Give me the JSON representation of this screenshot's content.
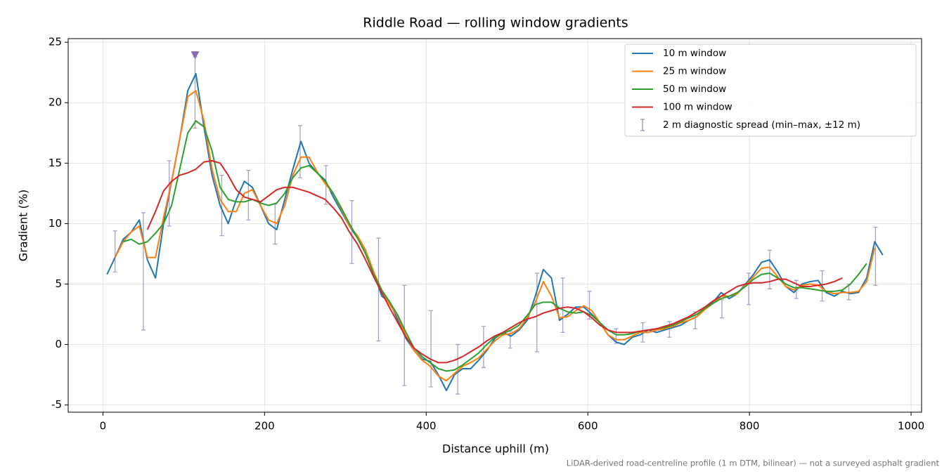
{
  "chart_data": {
    "type": "line",
    "title": "Riddle Road — rolling window gradients",
    "xlabel": "Distance uphill (m)",
    "ylabel": "Gradient (%)",
    "footnote": "LiDAR-derived road-centreline profile (1 m DTM, bilinear) — not a surveyed asphalt gradient",
    "xlim": [
      -43,
      1013
    ],
    "ylim": [
      -5.6,
      25.3
    ],
    "xticks": [
      0,
      200,
      400,
      600,
      800,
      1000
    ],
    "yticks": [
      -5,
      0,
      5,
      10,
      15,
      20,
      25
    ],
    "grid": true,
    "legend": "upper right",
    "x": [
      5,
      15,
      25,
      35,
      45,
      55,
      65,
      75,
      85,
      95,
      105,
      115,
      125,
      135,
      145,
      155,
      165,
      175,
      185,
      195,
      205,
      215,
      225,
      235,
      245,
      255,
      265,
      275,
      285,
      295,
      305,
      315,
      325,
      335,
      345,
      355,
      365,
      375,
      385,
      395,
      405,
      415,
      425,
      435,
      445,
      455,
      465,
      475,
      485,
      495,
      505,
      515,
      525,
      535,
      545,
      555,
      565,
      575,
      585,
      595,
      605,
      615,
      625,
      635,
      645,
      655,
      665,
      675,
      685,
      695,
      705,
      715,
      725,
      735,
      745,
      755,
      765,
      775,
      785,
      795,
      805,
      815,
      825,
      835,
      845,
      855,
      865,
      875,
      885,
      895,
      905,
      915,
      925,
      935,
      945,
      955,
      965
    ],
    "series": [
      {
        "name": "10 m window",
        "color": "#1f77b4",
        "values": [
          5.8,
          7.2,
          8.7,
          9.3,
          10.3,
          7.0,
          5.5,
          10,
          13.5,
          17,
          21,
          22.4,
          18,
          14,
          11.5,
          10,
          12,
          13.5,
          13,
          11.5,
          10,
          9.5,
          12,
          14.5,
          16.8,
          15,
          14.2,
          13.6,
          12.2,
          11,
          9.8,
          8.8,
          7.8,
          6,
          4,
          3.5,
          2,
          0.5,
          -0.5,
          -1.2,
          -1.4,
          -2.5,
          -3.8,
          -2.5,
          -2,
          -2,
          -1.3,
          -0.5,
          0.5,
          1,
          0.7,
          1.2,
          2,
          4,
          6.2,
          5.5,
          2,
          2.5,
          3.1,
          3.1,
          2.5,
          1.8,
          0.8,
          0.2,
          0,
          0.6,
          0.8,
          1.2,
          1,
          1.2,
          1.4,
          1.6,
          2,
          2.3,
          3,
          3.5,
          4.3,
          3.8,
          4.2,
          5,
          5.8,
          6.8,
          7,
          6,
          4.8,
          4.3,
          5,
          5.2,
          5.3,
          4.3,
          4,
          4.4,
          4.2,
          4.3,
          5.5,
          8.5,
          7.4
        ]
      },
      {
        "name": "25 m window",
        "color": "#ff7f0e",
        "values": [
          null,
          7.2,
          8.5,
          9.3,
          9.8,
          7.2,
          7.2,
          10.5,
          13.5,
          17,
          20.5,
          21,
          18.5,
          14.5,
          12,
          11,
          11,
          12.5,
          12.8,
          11.5,
          10.3,
          10,
          11.5,
          14,
          15.5,
          15.5,
          14.3,
          13.3,
          12.5,
          11.2,
          9.8,
          9,
          7.8,
          6,
          4.5,
          3.3,
          2.3,
          0.7,
          -0.5,
          -1.3,
          -1.8,
          -2.6,
          -3,
          -2.4,
          -1.8,
          -1.5,
          -1.1,
          -0.4,
          0.3,
          0.8,
          0.9,
          1.3,
          2.2,
          3.5,
          5.2,
          4,
          2.2,
          2.3,
          2.8,
          3.2,
          2.8,
          1.8,
          0.8,
          0.4,
          0.4,
          0.7,
          1,
          1,
          1.2,
          1.3,
          1.5,
          1.8,
          2,
          2.3,
          2.9,
          3.4,
          4,
          4,
          4.2,
          4.9,
          5.6,
          6.3,
          6.4,
          5.6,
          4.8,
          4.5,
          4.9,
          5,
          4.9,
          4.4,
          4.2,
          4.3,
          4.3,
          4.4,
          5.2,
          8,
          null
        ]
      },
      {
        "name": "50 m window",
        "color": "#2ca02c",
        "values": [
          null,
          null,
          8.5,
          8.7,
          8.3,
          8.5,
          9.2,
          10,
          11.5,
          14.5,
          17.5,
          18.5,
          18,
          16,
          13,
          12,
          11.8,
          11.8,
          12,
          11.7,
          11.5,
          11.7,
          12.5,
          13.8,
          14.6,
          14.8,
          14.2,
          13.5,
          12.5,
          11.3,
          10,
          8.8,
          7.5,
          5.8,
          4.5,
          3.5,
          2.4,
          1,
          -0.3,
          -1,
          -1.5,
          -2,
          -2.2,
          -2.1,
          -1.7,
          -1.2,
          -0.7,
          0,
          0.6,
          0.9,
          1.2,
          1.6,
          2.4,
          3.3,
          3.5,
          3.5,
          3,
          2.7,
          2.6,
          2.7,
          2.4,
          1.8,
          1.2,
          0.8,
          0.8,
          0.9,
          1.1,
          1.2,
          1.3,
          1.4,
          1.6,
          1.9,
          2.2,
          2.5,
          3,
          3.4,
          3.8,
          4,
          4.3,
          4.8,
          5.4,
          5.8,
          5.9,
          5.5,
          5,
          4.7,
          4.7,
          4.6,
          4.5,
          4.4,
          4.4,
          4.5,
          5,
          5.8,
          6.7,
          null,
          null
        ]
      },
      {
        "name": "100 m window",
        "color": "#d62728",
        "values": [
          null,
          null,
          null,
          null,
          null,
          9.5,
          11,
          12.7,
          13.5,
          14,
          14.2,
          14.5,
          15.1,
          15.2,
          15,
          14,
          12.8,
          12.2,
          12,
          11.8,
          12.3,
          12.8,
          13,
          13,
          12.8,
          12.6,
          12.3,
          12,
          11.3,
          10.5,
          9.3,
          8.3,
          7,
          5.6,
          4.3,
          3,
          1.8,
          0.6,
          -0.3,
          -0.8,
          -1.2,
          -1.5,
          -1.5,
          -1.3,
          -1,
          -0.6,
          -0.2,
          0.3,
          0.7,
          1,
          1.4,
          1.8,
          2.1,
          2.3,
          2.6,
          2.8,
          3,
          3.1,
          3,
          2.7,
          2.2,
          1.6,
          1.2,
          1,
          1,
          1,
          1.1,
          1.2,
          1.3,
          1.5,
          1.7,
          2,
          2.3,
          2.7,
          3.1,
          3.6,
          4,
          4.4,
          4.8,
          5,
          5.1,
          5.1,
          5.2,
          5.4,
          5.4,
          5.1,
          4.8,
          4.8,
          4.9,
          5,
          5.2,
          5.5,
          null,
          null,
          null,
          null,
          null
        ]
      }
    ],
    "errorbars": {
      "name": "2 m diagnostic spread (min–max, ±12 m)",
      "color": "#9a8fc4",
      "x": [
        15,
        50,
        82,
        114,
        147,
        180,
        213,
        244,
        276,
        308,
        341,
        373,
        406,
        439,
        471,
        504,
        537,
        569,
        602,
        635,
        668,
        701,
        733,
        766,
        799,
        825,
        858,
        890,
        923,
        956
      ],
      "low": [
        6,
        1.2,
        9.8,
        17.9,
        9,
        10.3,
        8.3,
        13.8,
        11.6,
        6.7,
        0.3,
        -3.4,
        -3.5,
        -4.1,
        -1.9,
        -0.3,
        -0.6,
        1,
        2.1,
        0.1,
        0.2,
        0.6,
        1.3,
        2.2,
        3.3,
        4.6,
        3.8,
        3.6,
        3.7,
        4.9
      ],
      "high": [
        9.4,
        10.9,
        15.2,
        23.8,
        14,
        14.4,
        11.6,
        18.1,
        14.8,
        11.9,
        8.8,
        4.9,
        2.8,
        0,
        1.5,
        1.1,
        5.9,
        5.5,
        4.4,
        1.3,
        1.8,
        1.9,
        2.7,
        3.7,
        5.9,
        7.8,
        5.3,
        6.1,
        5,
        9.7
      ]
    },
    "peak": {
      "x": 114,
      "y": 23.9,
      "color": "#8c6bb1"
    }
  }
}
